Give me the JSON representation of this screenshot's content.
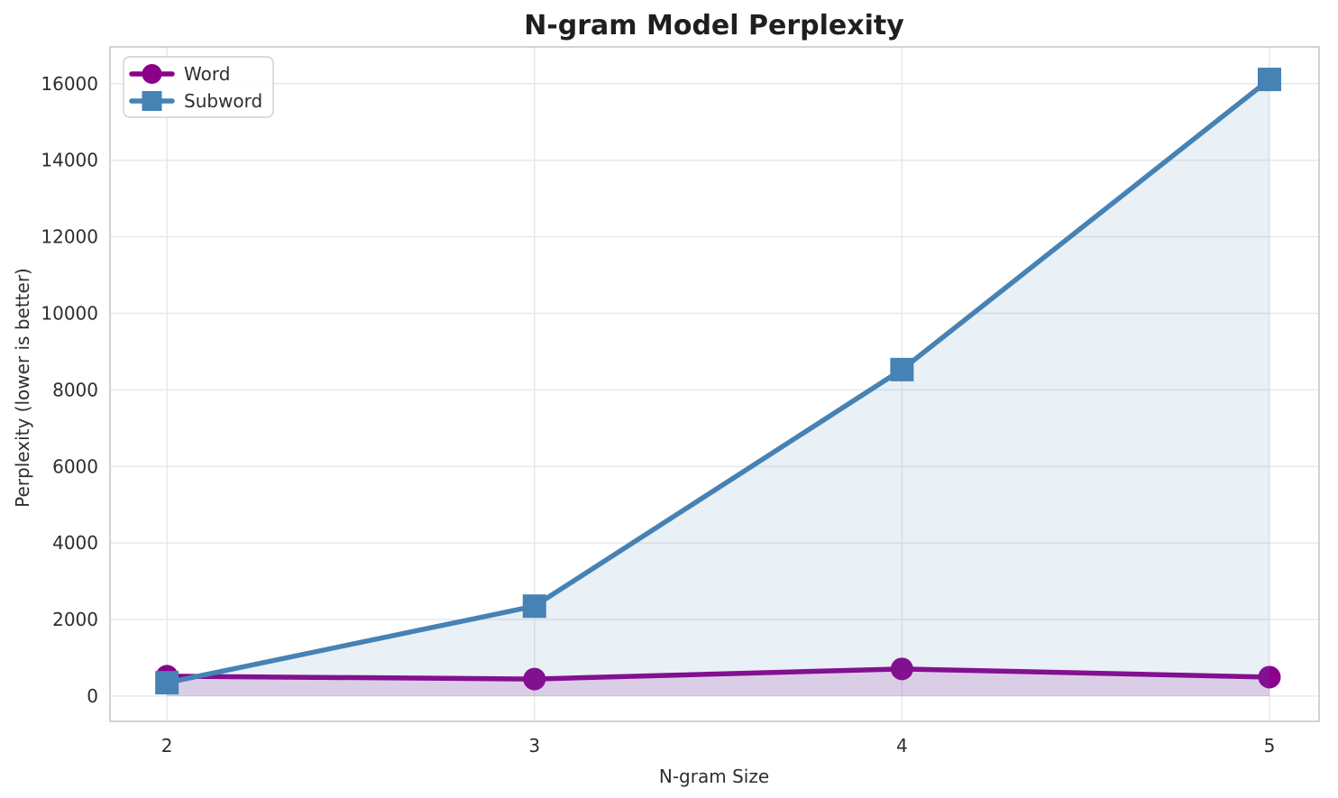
{
  "chart_data": {
    "type": "line",
    "title": "N-gram Model Perplexity",
    "xlabel": "N-gram Size",
    "ylabel": "Perplexity (lower is better)",
    "x": [
      2,
      3,
      4,
      5
    ],
    "series": [
      {
        "name": "Word",
        "marker": "circle",
        "color": "#8B008B",
        "fill_color": "rgba(139,0,139,0.15)",
        "values": [
          520,
          445,
          710,
          495
        ]
      },
      {
        "name": "Subword",
        "marker": "square",
        "color": "#4682B4",
        "fill_color": "rgba(70,130,180,0.12)",
        "values": [
          350,
          2350,
          8530,
          16110
        ]
      }
    ],
    "xticks": [
      2,
      3,
      4,
      5
    ],
    "yticks": [
      0,
      2000,
      4000,
      6000,
      8000,
      10000,
      12000,
      14000,
      16000
    ],
    "xlim": [
      1.845,
      5.135
    ],
    "ylim": [
      -660,
      16960
    ],
    "grid": true,
    "fill_to_zero": true,
    "legend": {
      "position": "upper-left",
      "entries": [
        "Word",
        "Subword"
      ]
    },
    "style": {
      "background": "#ffffff",
      "grid_color": "#e7e7e7",
      "spine_color": "#c8c8c8",
      "tick_color": "#2e2e2e",
      "title_color": "#1f1f1f"
    }
  }
}
